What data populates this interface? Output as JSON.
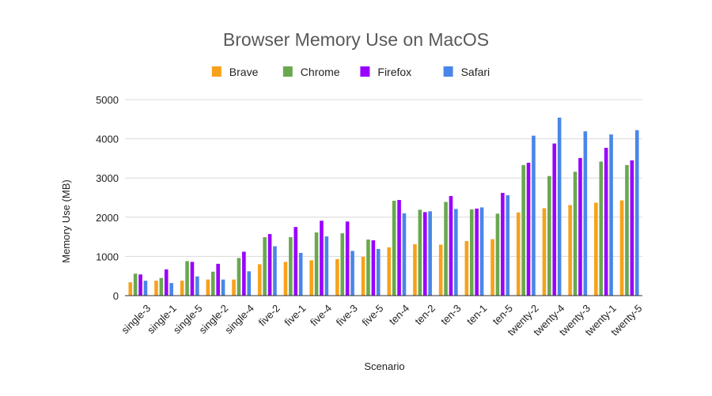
{
  "chart_data": {
    "type": "bar",
    "title": "Browser Memory Use on MacOS",
    "xlabel": "Scenario",
    "ylabel": "Memory Use (MB)",
    "ylim": [
      0,
      5000
    ],
    "yticks": [
      "0",
      "1000",
      "2000",
      "3000",
      "4000",
      "5000"
    ],
    "ytick_values": [
      0,
      1000,
      2000,
      3000,
      4000,
      5000
    ],
    "grid": true,
    "legend_position": "top",
    "categories": [
      "single-3",
      "single-1",
      "single-5",
      "single-2",
      "single-4",
      "five-2",
      "five-1",
      "five-4",
      "five-3",
      "five-5",
      "ten-4",
      "ten-2",
      "ten-3",
      "ten-1",
      "ten-5",
      "twenty-2",
      "twenty-4",
      "twenty-3",
      "twenty-1",
      "twenty-5"
    ],
    "series": [
      {
        "name": "Brave",
        "color": "#F7A11A",
        "values": [
          340,
          380,
          380,
          410,
          410,
          800,
          860,
          900,
          930,
          990,
          1230,
          1310,
          1300,
          1390,
          1440,
          2120,
          2230,
          2310,
          2370,
          2430
        ]
      },
      {
        "name": "Chrome",
        "color": "#6AA84F",
        "values": [
          560,
          450,
          880,
          610,
          960,
          1490,
          1490,
          1610,
          1590,
          1430,
          2420,
          2190,
          2390,
          2200,
          2090,
          3330,
          3050,
          3160,
          3420,
          3330
        ]
      },
      {
        "name": "Firefox",
        "color": "#9900FF",
        "values": [
          540,
          670,
          860,
          810,
          1120,
          1570,
          1750,
          1910,
          1890,
          1410,
          2440,
          2130,
          2540,
          2220,
          2620,
          3390,
          3880,
          3510,
          3770,
          3450
        ]
      },
      {
        "name": "Safari",
        "color": "#4A86E8",
        "values": [
          380,
          320,
          490,
          410,
          620,
          1260,
          1090,
          1510,
          1140,
          1190,
          2100,
          2150,
          2210,
          2250,
          2560,
          4080,
          4540,
          4190,
          4110,
          4220
        ]
      }
    ]
  }
}
